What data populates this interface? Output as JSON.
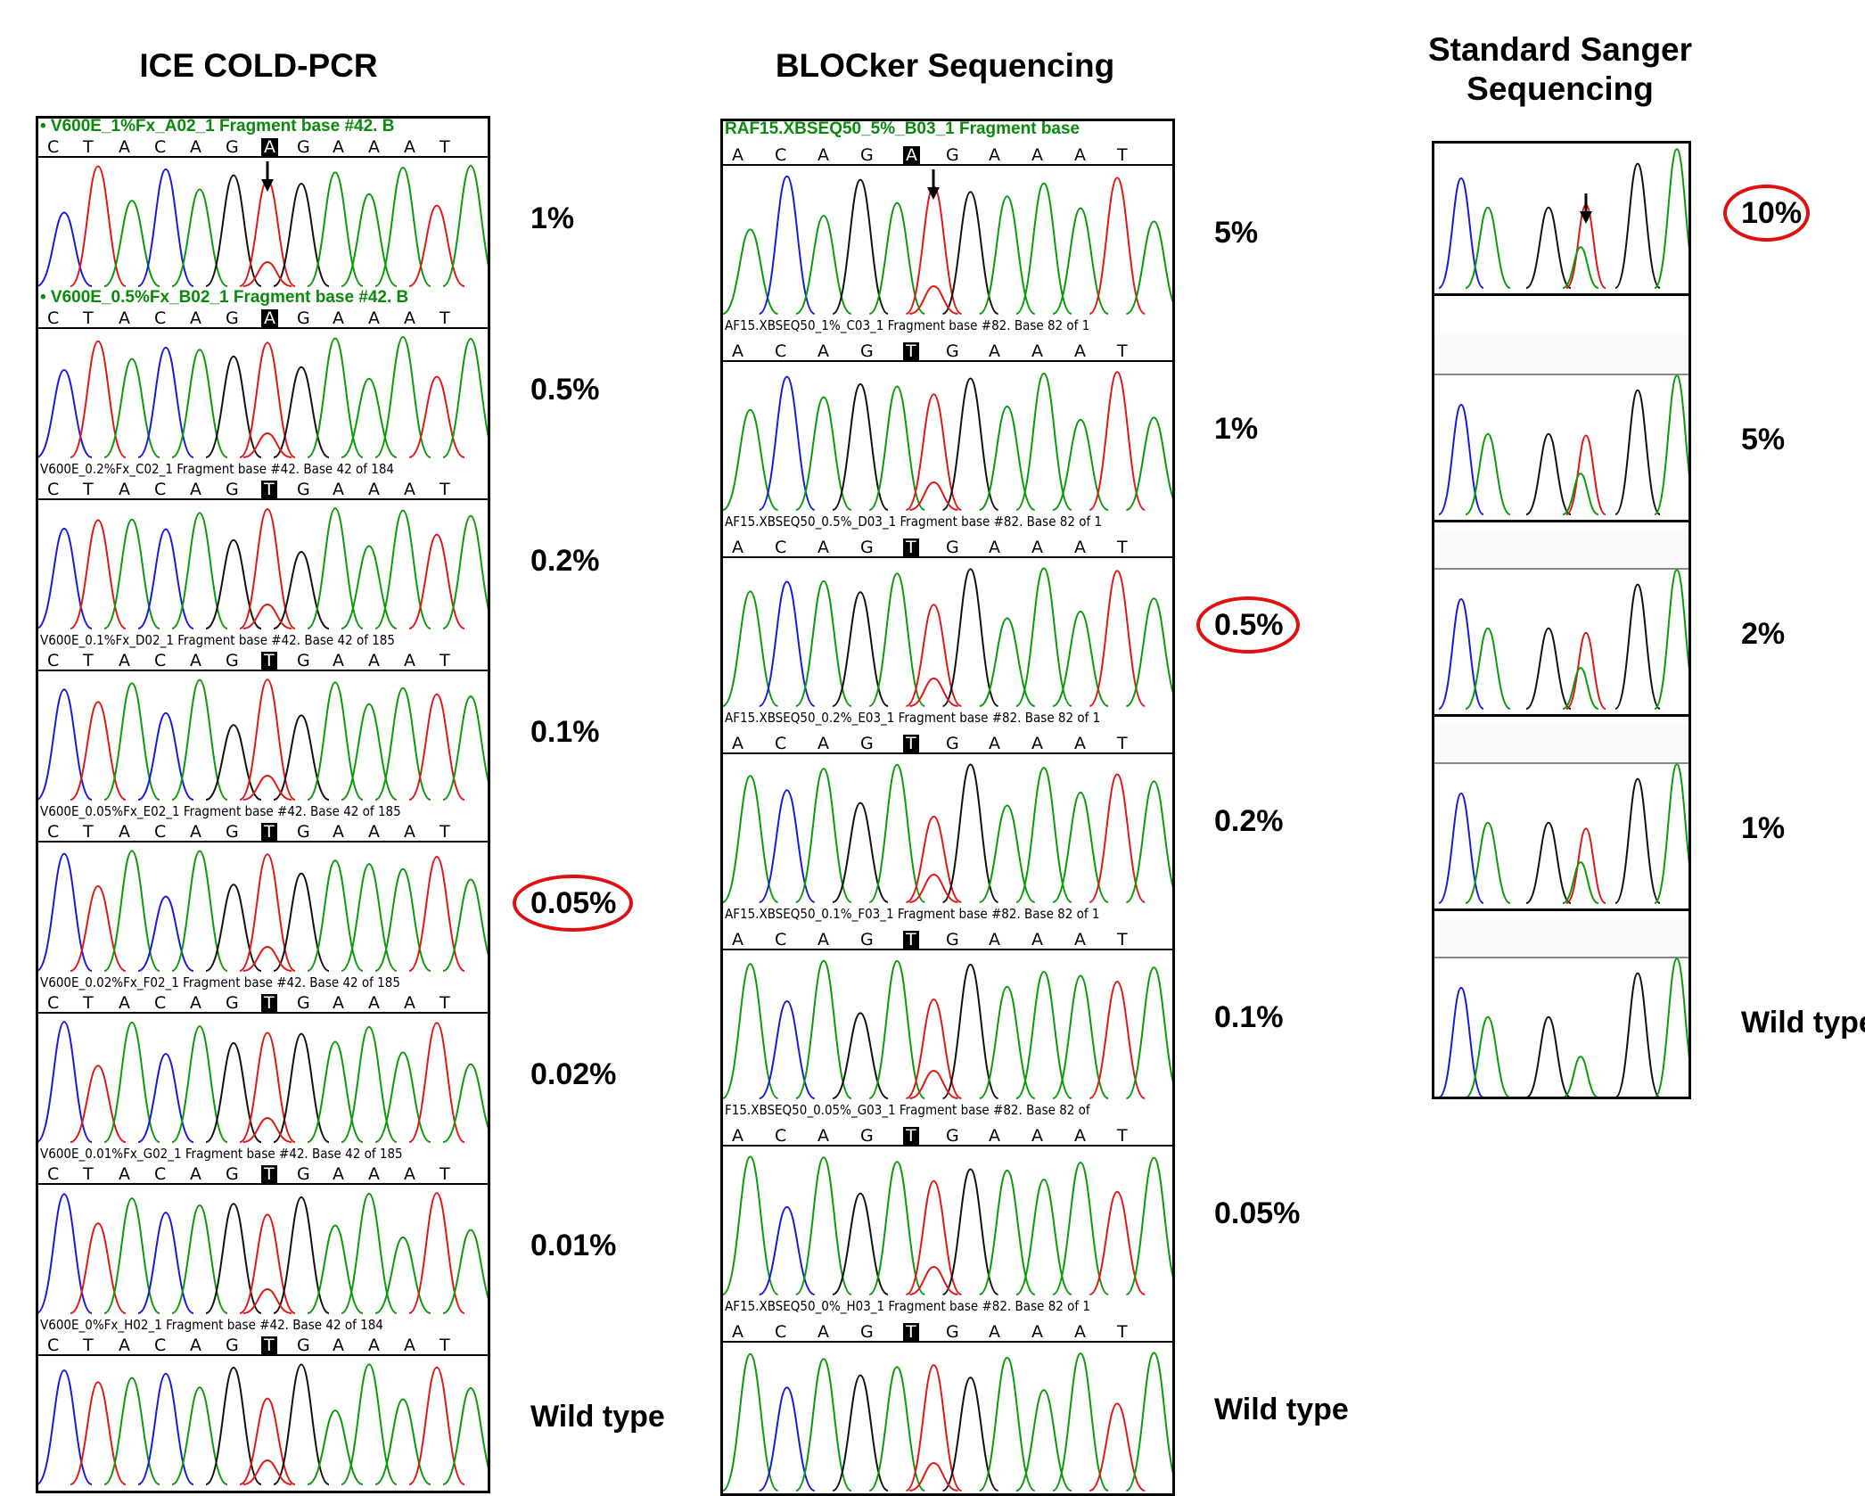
{
  "columns": [
    {
      "title": "ICE COLD-PCR",
      "lanes": [
        {
          "header": "• V600E_1%Fx_A02_1 Fragment base #42. B",
          "style": "green",
          "bases": [
            "C",
            "T",
            "A",
            "C",
            "A",
            "G",
            "A",
            "G",
            "A",
            "A",
            "A",
            "T"
          ],
          "highlight": 6,
          "label": "1%",
          "circled": false,
          "arrow": true
        },
        {
          "header": "• V600E_0.5%Fx_B02_1 Fragment base #42. B",
          "style": "green",
          "bases": [
            "C",
            "T",
            "A",
            "C",
            "A",
            "G",
            "A",
            "G",
            "A",
            "A",
            "A",
            "T"
          ],
          "highlight": 6,
          "label": "0.5%",
          "circled": false,
          "arrow": false
        },
        {
          "header": "V600E_0.2%Fx_C02_1 Fragment base #42. Base 42 of 184",
          "style": "dark",
          "bases": [
            "C",
            "T",
            "A",
            "C",
            "A",
            "G",
            "T",
            "G",
            "A",
            "A",
            "A",
            "T"
          ],
          "highlight": 6,
          "label": "0.2%",
          "circled": false,
          "arrow": false
        },
        {
          "header": "V600E_0.1%Fx_D02_1 Fragment base #42. Base 42 of 185",
          "style": "dark",
          "bases": [
            "C",
            "T",
            "A",
            "C",
            "A",
            "G",
            "T",
            "G",
            "A",
            "A",
            "A",
            "T"
          ],
          "highlight": 6,
          "label": "0.1%",
          "circled": false,
          "arrow": false
        },
        {
          "header": "V600E_0.05%Fx_E02_1 Fragment base #42. Base 42 of 185",
          "style": "dark",
          "bases": [
            "C",
            "T",
            "A",
            "C",
            "A",
            "G",
            "T",
            "G",
            "A",
            "A",
            "A",
            "T"
          ],
          "highlight": 6,
          "label": "0.05%",
          "circled": true,
          "arrow": false
        },
        {
          "header": "V600E_0.02%Fx_F02_1 Fragment base #42. Base 42 of 185",
          "style": "dark",
          "bases": [
            "C",
            "T",
            "A",
            "C",
            "A",
            "G",
            "T",
            "G",
            "A",
            "A",
            "A",
            "T"
          ],
          "highlight": 6,
          "label": "0.02%",
          "circled": false,
          "arrow": false
        },
        {
          "header": "V600E_0.01%Fx_G02_1 Fragment base #42. Base 42 of 185",
          "style": "dark",
          "bases": [
            "C",
            "T",
            "A",
            "C",
            "A",
            "G",
            "T",
            "G",
            "A",
            "A",
            "A",
            "T"
          ],
          "highlight": 6,
          "label": "0.01%",
          "circled": false,
          "arrow": false
        },
        {
          "header": "V600E_0%Fx_H02_1 Fragment base #42. Base 42 of 184",
          "style": "dark",
          "bases": [
            "C",
            "T",
            "A",
            "C",
            "A",
            "G",
            "T",
            "G",
            "A",
            "A",
            "A",
            "T"
          ],
          "highlight": 6,
          "label": "Wild type",
          "circled": false,
          "arrow": false
        }
      ]
    },
    {
      "title": "BLOCker Sequencing",
      "lanes": [
        {
          "header": "RAF15.XBSEQ50_5%_B03_1 Fragment base",
          "style": "green",
          "bases": [
            "A",
            "C",
            "A",
            "G",
            "A",
            "G",
            "A",
            "A",
            "A",
            "T"
          ],
          "highlight": 4,
          "label": "5%",
          "circled": false,
          "arrow": true
        },
        {
          "header": "AF15.XBSEQ50_1%_C03_1 Fragment base #82. Base 82 of 1",
          "style": "dark",
          "bases": [
            "A",
            "C",
            "A",
            "G",
            "T",
            "G",
            "A",
            "A",
            "A",
            "T"
          ],
          "highlight": 4,
          "label": "1%",
          "circled": false,
          "arrow": false
        },
        {
          "header": "AF15.XBSEQ50_0.5%_D03_1 Fragment base #82. Base 82 of 1",
          "style": "dark",
          "bases": [
            "A",
            "C",
            "A",
            "G",
            "T",
            "G",
            "A",
            "A",
            "A",
            "T"
          ],
          "highlight": 4,
          "label": "0.5%",
          "circled": true,
          "arrow": false
        },
        {
          "header": "AF15.XBSEQ50_0.2%_E03_1 Fragment base #82. Base 82 of 1",
          "style": "dark",
          "bases": [
            "A",
            "C",
            "A",
            "G",
            "T",
            "G",
            "A",
            "A",
            "A",
            "T"
          ],
          "highlight": 4,
          "label": "0.2%",
          "circled": false,
          "arrow": false
        },
        {
          "header": "AF15.XBSEQ50_0.1%_F03_1 Fragment base #82. Base 82 of 1",
          "style": "dark",
          "bases": [
            "A",
            "C",
            "A",
            "G",
            "T",
            "G",
            "A",
            "A",
            "A",
            "T"
          ],
          "highlight": 4,
          "label": "0.1%",
          "circled": false,
          "arrow": false
        },
        {
          "header": "F15.XBSEQ50_0.05%_G03_1 Fragment base #82. Base 82 of",
          "style": "dark",
          "bases": [
            "A",
            "C",
            "A",
            "G",
            "T",
            "G",
            "A",
            "A",
            "A",
            "T"
          ],
          "highlight": 4,
          "label": "0.05%",
          "circled": false,
          "arrow": false
        },
        {
          "header": "AF15.XBSEQ50_0%_H03_1 Fragment base #82. Base 82 of 1",
          "style": "dark",
          "bases": [
            "A",
            "C",
            "A",
            "G",
            "T",
            "G",
            "A",
            "A",
            "A",
            "T"
          ],
          "highlight": 4,
          "label": "Wild type",
          "circled": false,
          "arrow": false
        }
      ]
    },
    {
      "title_line1": "Standard Sanger",
      "title_line2": "Sequencing",
      "lanes": [
        {
          "label": "10%",
          "circled": true,
          "arrow": true,
          "mutant": 0.6
        },
        {
          "label": "5%",
          "circled": false,
          "arrow": false,
          "mutant": 0.45
        },
        {
          "label": "2%",
          "circled": false,
          "arrow": false,
          "mutant": 0.35
        },
        {
          "label": "1%",
          "circled": false,
          "arrow": false,
          "mutant": 0.3
        },
        {
          "label": "Wild type",
          "circled": false,
          "arrow": false,
          "mutant": 0.0
        }
      ]
    }
  ],
  "trace_colors": {
    "A": "#0a9a0a",
    "C": "#1a1adc",
    "G": "#111111",
    "T": "#e01818"
  }
}
